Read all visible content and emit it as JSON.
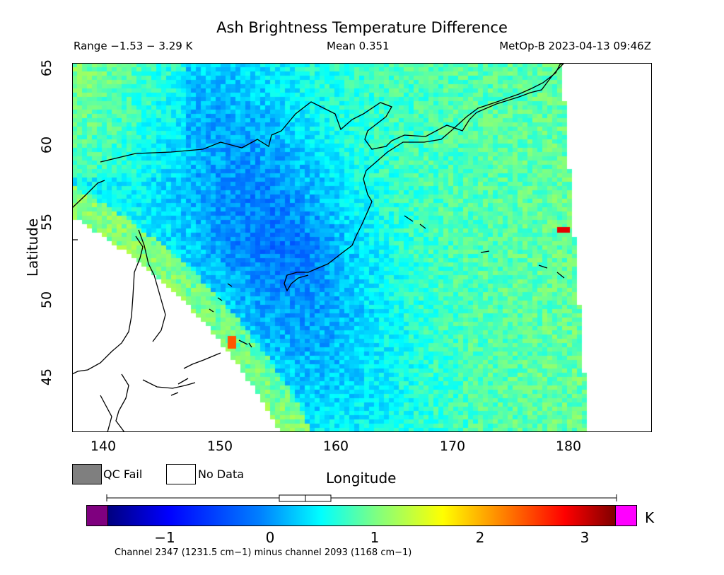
{
  "title": "Ash Brightness Temperature Difference",
  "range_text": "Range −1.53 − 3.29 K",
  "mean_text": "Mean 0.351",
  "satellite_text": "MetOp-B 2023-04-13 09:46Z",
  "x_axis": {
    "label": "Longitude",
    "ticks": [
      "140",
      "150",
      "160",
      "170",
      "180"
    ],
    "range": [
      137.5,
      187.1
    ]
  },
  "y_axis": {
    "label": "Latitude",
    "ticks": [
      "45",
      "50",
      "55",
      "60",
      "65"
    ],
    "range": [
      41.3,
      65.0
    ]
  },
  "legend": {
    "qc_fail": "QC Fail",
    "no_data": "No Data",
    "qc_fail_color": "#7f7f7f",
    "no_data_color": "#ffffff"
  },
  "colorbar": {
    "ticks": [
      "−1",
      "0",
      "1",
      "2",
      "3"
    ],
    "unit": "K",
    "min": -1.53,
    "max": 3.29,
    "low_color": "#7f007f",
    "high_color": "#ff00ff",
    "stops": [
      "#00007f",
      "#0000ff",
      "#0080ff",
      "#00ffff",
      "#80ff80",
      "#ffff00",
      "#ff8000",
      "#ff0000",
      "#7f0000"
    ]
  },
  "boxplot": {
    "min": -1.53,
    "q1": 0.1,
    "median": 0.35,
    "q3": 0.6,
    "max": 3.29
  },
  "caption": "Channel 2347 (1231.5 cm−1) minus channel 2093 (1168 cm−1)"
}
